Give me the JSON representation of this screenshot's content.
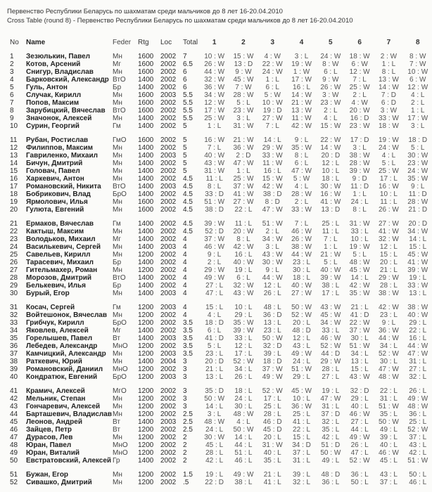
{
  "title_line1": "Первенство Республики Беларусь по шахматам среди мальчиков до 8 лет  16-20.04.2010",
  "title_line2": "Cross Table  (round 8) - Первенство Республики Беларусь по шахматам среди мальчиков до 8 лет  16-20.04.2010",
  "headers": {
    "no": "No",
    "name": "Name",
    "feder": "Feder",
    "rtg": "Rtg",
    "loc": "Loc",
    "total": "Total",
    "rounds": [
      "1",
      "2",
      "3",
      "4",
      "5",
      "6",
      "7",
      "8"
    ]
  },
  "rows": [
    {
      "no": "1",
      "name": "Зезюлькин, Павел",
      "feder": "Мн",
      "rtg": "1600",
      "loc": "2002",
      "total": "7",
      "r": [
        "10 : W",
        "15 : W",
        "4 : W",
        "3 : L",
        "24 : W",
        "18 : W",
        "2 : W",
        "8 : W"
      ]
    },
    {
      "no": "2",
      "name": "Котов, Арсений",
      "feder": "Мг",
      "rtg": "1600",
      "loc": "2002",
      "total": "6.5",
      "r": [
        "26 : W",
        "13 : D",
        "22 : W",
        "19 : W",
        "8 : W",
        "6 : W",
        "1 : L",
        "7 : W"
      ]
    },
    {
      "no": "3",
      "name": "Снигур, Владислав",
      "feder": "Мн",
      "rtg": "1600",
      "loc": "2002",
      "total": "6",
      "r": [
        "44 : W",
        "9 : W",
        "24 : W",
        "1 : W",
        "6 : L",
        "12 : W",
        "8 : L",
        "10 : W"
      ]
    },
    {
      "no": "4",
      "name": "Барковский, Александр",
      "feder": "ВтО",
      "rtg": "1400",
      "loc": "2002",
      "total": "6",
      "r": [
        "32 : W",
        "45 : W",
        "1 : L",
        "17 : W",
        "9 : W",
        "7 : L",
        "13 : W",
        "6 : W"
      ]
    },
    {
      "no": "5",
      "name": "Гуль, Антон",
      "feder": "Бр",
      "rtg": "1400",
      "loc": "2002",
      "total": "6",
      "r": [
        "36 : W",
        "7 : W",
        "6 : L",
        "16 : L",
        "26 : W",
        "25 : W",
        "14 : W",
        "12 : W"
      ]
    },
    {
      "no": "6",
      "name": "Случак, Кирилл",
      "feder": "Мн",
      "rtg": "1600",
      "loc": "2003",
      "total": "5.5",
      "r": [
        "34 : W",
        "28 : W",
        "5 : W",
        "14 : W",
        "3 : W",
        "2 : L",
        "7 : D",
        "4 : L"
      ]
    },
    {
      "no": "7",
      "name": "Попов, Максим",
      "feder": "Мн",
      "rtg": "1600",
      "loc": "2002",
      "total": "5.5",
      "r": [
        "12 : W",
        "5 : L",
        "10 : W",
        "21 : W",
        "23 : W",
        "4 : W",
        "6 : D",
        "2 : L"
      ]
    },
    {
      "no": "8",
      "name": "Зарубицкий, Вячеслав",
      "feder": "ВтО",
      "rtg": "1600",
      "loc": "2002",
      "total": "5.5",
      "r": [
        "17 : W",
        "23 : W",
        "19 : D",
        "13 : W",
        "2 : L",
        "20 : W",
        "3 : W",
        "1 : L"
      ]
    },
    {
      "no": "9",
      "name": "Значонок, Алексей",
      "feder": "Мн",
      "rtg": "1400",
      "loc": "2002",
      "total": "5.5",
      "r": [
        "25 : W",
        "3 : L",
        "27 : W",
        "11 : W",
        "4 : L",
        "16 : D",
        "33 : W",
        "17 : W"
      ]
    },
    {
      "no": "10",
      "name": "Сурин, Георгий",
      "feder": "Гм",
      "rtg": "1400",
      "loc": "2002",
      "total": "5",
      "r": [
        "1 : L",
        "31 : W",
        "7 : L",
        "42 : W",
        "15 : W",
        "23 : W",
        "18 : W",
        "3 : L"
      ]
    },
    {
      "no": "11",
      "name": "Рубан, Ростислав",
      "feder": "ГмО",
      "rtg": "1600",
      "loc": "2002",
      "total": "5",
      "r": [
        "16 : W",
        "21 : W",
        "14 : L",
        "9 : L",
        "22 : W",
        "17 : D",
        "19 : W",
        "18 : D"
      ]
    },
    {
      "no": "12",
      "name": "Филиппов, Максим",
      "feder": "Мн",
      "rtg": "1400",
      "loc": "2002",
      "total": "5",
      "r": [
        "7 : L",
        "36 : W",
        "29 : W",
        "35 : W",
        "14 : W",
        "3 : L",
        "24 : W",
        "5 : L"
      ]
    },
    {
      "no": "13",
      "name": "Гавриленко, Михаил",
      "feder": "Мн",
      "rtg": "1400",
      "loc": "2003",
      "total": "5",
      "r": [
        "40 : W",
        "2 : D",
        "33 : W",
        "8 : L",
        "20 : D",
        "38 : W",
        "4 : L",
        "30 : W"
      ]
    },
    {
      "no": "14",
      "name": "Бичун, Дмитрий",
      "feder": "Мн",
      "rtg": "1400",
      "loc": "2002",
      "total": "5",
      "r": [
        "43 : W",
        "47 : W",
        "11 : W",
        "6 : L",
        "12 : L",
        "28 : W",
        "5 : L",
        "23 : W"
      ]
    },
    {
      "no": "15",
      "name": "Головач, Павел",
      "feder": "Мн",
      "rtg": "1400",
      "loc": "2002",
      "total": "5",
      "r": [
        "31 : W",
        "1 : L",
        "16 : L",
        "47 : W",
        "10 : L",
        "39 : W",
        "25 : W",
        "24 : W"
      ]
    },
    {
      "no": "16",
      "name": "Харкевич, Антон",
      "feder": "Мн",
      "rtg": "1400",
      "loc": "2002",
      "total": "4.5",
      "r": [
        "11 : L",
        "25 : W",
        "15 : W",
        "5 : W",
        "18 : L",
        "9 : D",
        "17 : L",
        "35 : W"
      ]
    },
    {
      "no": "17",
      "name": "Романовский, Никита",
      "feder": "ВтО",
      "rtg": "1400",
      "loc": "2003",
      "total": "4.5",
      "r": [
        "8 : L",
        "37 : W",
        "42 : W",
        "4 : L",
        "30 : W",
        "11 : D",
        "16 : W",
        "9 : L"
      ]
    },
    {
      "no": "18",
      "name": "Бобрикович, Влад",
      "feder": "БрО",
      "rtg": "1400",
      "loc": "2002",
      "total": "4.5",
      "r": [
        "33 : D",
        "41 : W",
        "38 : D",
        "28 : W",
        "16 : W",
        "1 : L",
        "10 : L",
        "11 : D"
      ]
    },
    {
      "no": "19",
      "name": "Ярмолович, Илья",
      "feder": "Мн",
      "rtg": "1600",
      "loc": "2002",
      "total": "4.5",
      "r": [
        "51 : W",
        "27 : W",
        "8 : D",
        "2 : L",
        "41 : W",
        "24 : L",
        "11 : L",
        "28 : W"
      ]
    },
    {
      "no": "20",
      "name": "Гулюта, Евгений",
      "feder": "Мн",
      "rtg": "1600",
      "loc": "2002",
      "total": "4.5",
      "r": [
        "38 : D",
        "22 : L",
        "47 : W",
        "33 : W",
        "13 : D",
        "8 : L",
        "26 : W",
        "21 : D"
      ]
    },
    {
      "no": "21",
      "name": "Ермаков, Вячеслав",
      "feder": "Гм",
      "rtg": "1400",
      "loc": "2002",
      "total": "4.5",
      "r": [
        "39 : W",
        "11 : L",
        "51 : W",
        "7 : L",
        "25 : L",
        "31 : W",
        "27 : W",
        "20 : D"
      ]
    },
    {
      "no": "22",
      "name": "Кактыш, Максим",
      "feder": "Мн",
      "rtg": "1400",
      "loc": "2002",
      "total": "4.5",
      "r": [
        "52 : D",
        "20 : W",
        "2 : L",
        "46 : W",
        "11 : L",
        "33 : L",
        "41 : W",
        "34 : W"
      ]
    },
    {
      "no": "23",
      "name": "Володьков, Михаил",
      "feder": "Мг",
      "rtg": "1400",
      "loc": "2002",
      "total": "4",
      "r": [
        "37 : W",
        "8 : L",
        "34 : W",
        "26 : W",
        "7 : L",
        "10 : L",
        "32 : W",
        "14 : L"
      ]
    },
    {
      "no": "24",
      "name": "Василькевич, Сергей",
      "feder": "Мн",
      "rtg": "1400",
      "loc": "2003",
      "total": "4",
      "r": [
        "46 : W",
        "42 : W",
        "3 : L",
        "38 : W",
        "1 : L",
        "19 : W",
        "12 : L",
        "15 : L"
      ]
    },
    {
      "no": "25",
      "name": "Савельев, Кирилл",
      "feder": "Мн",
      "rtg": "1200",
      "loc": "2002",
      "total": "4",
      "r": [
        "9 : L",
        "16 : L",
        "43 : W",
        "44 : W",
        "21 : W",
        "5 : L",
        "15 : L",
        "45 : W"
      ]
    },
    {
      "no": "26",
      "name": "Тарасевич, Михаил",
      "feder": "Бр",
      "rtg": "1400",
      "loc": "2002",
      "total": "4",
      "r": [
        "2 : L",
        "40 : W",
        "30 : W",
        "23 : L",
        "5 : L",
        "48 : W",
        "20 : L",
        "41 : W"
      ]
    },
    {
      "no": "27",
      "name": "Гительмахер, Роман",
      "feder": "Мн",
      "rtg": "1200",
      "loc": "2002",
      "total": "4",
      "r": [
        "29 : W",
        "19 : L",
        "9 : L",
        "30 : L",
        "40 : W",
        "45 : W",
        "21 : L",
        "39 : W"
      ]
    },
    {
      "no": "28",
      "name": "Морозов, Дмитрий",
      "feder": "ВтО",
      "rtg": "1400",
      "loc": "2002",
      "total": "4",
      "r": [
        "49 : W",
        "6 : L",
        "44 : W",
        "18 : L",
        "39 : W",
        "14 : L",
        "29 : W",
        "19 : L"
      ]
    },
    {
      "no": "29",
      "name": "Белькевич, Илья",
      "feder": "Бр",
      "rtg": "1400",
      "loc": "2002",
      "total": "4",
      "r": [
        "27 : L",
        "32 : W",
        "12 : L",
        "40 : W",
        "38 : L",
        "42 : W",
        "28 : L",
        "33 : W"
      ]
    },
    {
      "no": "30",
      "name": "Бурый, Егор",
      "feder": "Мн",
      "rtg": "1400",
      "loc": "2003",
      "total": "4",
      "r": [
        "47 : L",
        "43 : W",
        "26 : L",
        "27 : W",
        "17 : L",
        "35 : W",
        "38 : W",
        "13 : L"
      ]
    },
    {
      "no": "31",
      "name": "Косач, Сергей",
      "feder": "Гм",
      "rtg": "1200",
      "loc": "2003",
      "total": "4",
      "r": [
        "15 : L",
        "10 : L",
        "48 : L",
        "50 : W",
        "43 : W",
        "21 : L",
        "42 : W",
        "38 : W"
      ]
    },
    {
      "no": "32",
      "name": "Войтешонок, Вячеслав",
      "feder": "Мн",
      "rtg": "1200",
      "loc": "2002",
      "total": "4",
      "r": [
        "4 : L",
        "29 : L",
        "36 : D",
        "52 : W",
        "45 : W",
        "41 : D",
        "23 : L",
        "40 : W"
      ]
    },
    {
      "no": "33",
      "name": "Грибчук, Кирилл",
      "feder": "БрО",
      "rtg": "1200",
      "loc": "2002",
      "total": "3.5",
      "r": [
        "18 : D",
        "35 : W",
        "13 : L",
        "20 : L",
        "34 : W",
        "22 : W",
        "9 : L",
        "29 : L"
      ]
    },
    {
      "no": "34",
      "name": "Яковлев, Алексей",
      "feder": "Мг",
      "rtg": "1400",
      "loc": "2002",
      "total": "3.5",
      "r": [
        "6 : L",
        "39 : W",
        "23 : L",
        "48 : D",
        "33 : L",
        "37 : W",
        "36 : W",
        "22 : L"
      ]
    },
    {
      "no": "35",
      "name": "Горелышев, Павел",
      "feder": "Вт",
      "rtg": "1400",
      "loc": "2003",
      "total": "3.5",
      "r": [
        "41 : D",
        "33 : L",
        "50 : W",
        "12 : L",
        "46 : W",
        "30 : L",
        "44 : W",
        "16 : L"
      ]
    },
    {
      "no": "36",
      "name": "Лебедев, Александр",
      "feder": "МнО",
      "rtg": "1200",
      "loc": "2002",
      "total": "3.5",
      "r": [
        "5 : L",
        "12 : L",
        "32 : D",
        "43 : L",
        "52 : W",
        "51 : W",
        "34 : L",
        "44 : W"
      ]
    },
    {
      "no": "37",
      "name": "Камчицкий, Александр",
      "feder": "Мн",
      "rtg": "1200",
      "loc": "2003",
      "total": "3.5",
      "r": [
        "23 : L",
        "17 : L",
        "39 : L",
        "49 : W",
        "44 : D",
        "34 : L",
        "52 : W",
        "47 : W"
      ]
    },
    {
      "no": "38",
      "name": "Раткевич, Юрий",
      "feder": "Мн",
      "rtg": "1400",
      "loc": "2004",
      "total": "3",
      "r": [
        "20 : D",
        "52 : W",
        "18 : D",
        "24 : L",
        "29 : W",
        "13 : L",
        "30 : L",
        "31 : L"
      ]
    },
    {
      "no": "39",
      "name": "Романовский, Даниил",
      "feder": "МнО",
      "rtg": "1200",
      "loc": "2002",
      "total": "3",
      "r": [
        "21 : L",
        "34 : L",
        "37 : W",
        "51 : W",
        "28 : L",
        "15 : L",
        "47 : W",
        "27 : L"
      ]
    },
    {
      "no": "40",
      "name": "Кондратюк, Евгений",
      "feder": "БрО",
      "rtg": "1200",
      "loc": "2003",
      "total": "3",
      "r": [
        "13 : L",
        "26 : L",
        "49 : W",
        "29 : L",
        "27 : L",
        "43 : W",
        "48 : W",
        "32 : L"
      ]
    },
    {
      "no": "41",
      "name": "Крамич, Алексей",
      "feder": "МгО",
      "rtg": "1200",
      "loc": "2002",
      "total": "3",
      "r": [
        "35 : D",
        "18 : L",
        "52 : W",
        "45 : W",
        "19 : L",
        "32 : D",
        "22 : L",
        "26 : L"
      ]
    },
    {
      "no": "42",
      "name": "Мельник, Степан",
      "feder": "Мн",
      "rtg": "1200",
      "loc": "2002",
      "total": "3",
      "r": [
        "50 : W",
        "24 : L",
        "17 : L",
        "10 : L",
        "47 : W",
        "29 : L",
        "31 : L",
        "49 : W"
      ]
    },
    {
      "no": "43",
      "name": "Гончаревич, Алексей",
      "feder": "Мн",
      "rtg": "1200",
      "loc": "2002",
      "total": "3",
      "r": [
        "14 : L",
        "30 : L",
        "25 : L",
        "36 : W",
        "31 : L",
        "40 : L",
        "51 : W",
        "48 : W"
      ]
    },
    {
      "no": "44",
      "name": "Барташевич, Владислав",
      "feder": "Мн",
      "rtg": "1200",
      "loc": "2002",
      "total": "2.5",
      "r": [
        "3 : L",
        "48 : W",
        "28 : L",
        "25 : L",
        "37 : D",
        "46 : W",
        "35 : L",
        "36 : L"
      ]
    },
    {
      "no": "45",
      "name": "Леонов, Андрей",
      "feder": "Вт",
      "rtg": "1400",
      "loc": "2003",
      "total": "2.5",
      "r": [
        "48 : W",
        "4 : L",
        "46 : D",
        "41 : L",
        "32 : L",
        "27 : L",
        "50 : W",
        "25 : L"
      ]
    },
    {
      "no": "46",
      "name": "Зайцев, Петр",
      "feder": "Вт",
      "rtg": "1200",
      "loc": "2002",
      "total": "2.5",
      "r": [
        "24 : L",
        "50 : W",
        "45 : D",
        "22 : L",
        "35 : L",
        "44 : L",
        "49 : L",
        "52 : W"
      ]
    },
    {
      "no": "47",
      "name": "Дурасов, Лев",
      "feder": "Мн",
      "rtg": "1200",
      "loc": "2002",
      "total": "2",
      "r": [
        "30 : W",
        "14 : L",
        "20 : L",
        "15 : L",
        "42 : L",
        "49 : W",
        "39 : L",
        "37 : L"
      ]
    },
    {
      "no": "48",
      "name": "Юран, Павел",
      "feder": "МнО",
      "rtg": "1200",
      "loc": "2002",
      "total": "2",
      "r": [
        "45 : L",
        "44 : L",
        "31 : W",
        "34 : D",
        "51 : D",
        "26 : L",
        "40 : L",
        "43 : L"
      ]
    },
    {
      "no": "49",
      "name": "Юран, Виталий",
      "feder": "МнО",
      "rtg": "1200",
      "loc": "2002",
      "total": "2",
      "r": [
        "28 : L",
        "51 : L",
        "40 : L",
        "37 : L",
        "50 : W",
        "47 : L",
        "46 : W",
        "42 : L"
      ]
    },
    {
      "no": "50",
      "name": "Евстратовский, Алексей",
      "feder": "Гр",
      "rtg": "1400",
      "loc": "2002",
      "total": "2",
      "r": [
        "42 : L",
        "46 : L",
        "35 : L",
        "31 : L",
        "49 : L",
        "52 : W",
        "45 : L",
        "51 : W"
      ]
    },
    {
      "no": "51",
      "name": "Бужан, Егор",
      "feder": "Мн",
      "rtg": "1200",
      "loc": "2002",
      "total": "1.5",
      "r": [
        "19 : L",
        "49 : W",
        "21 : L",
        "39 : L",
        "48 : D",
        "36 : L",
        "43 : L",
        "50 : L"
      ]
    },
    {
      "no": "52",
      "name": "Сивашко, Дмитрий",
      "feder": "Мн",
      "rtg": "1200",
      "loc": "2002",
      "total": ".5",
      "r": [
        "22 : D",
        "38 : L",
        "41 : L",
        "32 : L",
        "36 : L",
        "50 : L",
        "37 : L",
        "46 : L"
      ]
    }
  ]
}
